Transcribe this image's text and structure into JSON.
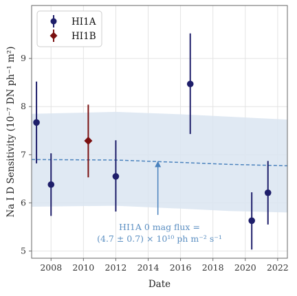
{
  "chart_data": {
    "type": "scatter",
    "xlabel": "Date",
    "ylabel": "Na I D Sensitivity (10⁻⁷ DN ph⁻¹ m²)",
    "xlim": [
      2006.8,
      2022.6
    ],
    "ylim": [
      4.85,
      10.1
    ],
    "xticks": [
      2008,
      2010,
      2012,
      2014,
      2016,
      2018,
      2020,
      2022
    ],
    "yticks": [
      5,
      6,
      7,
      8,
      9
    ],
    "grid": true,
    "legend_position": "top-left",
    "series": [
      {
        "name": "HI1A",
        "marker": "circle",
        "color": "#1e1e6a",
        "points": [
          {
            "x": 2007.1,
            "y": 7.67,
            "ylow": 6.82,
            "yhigh": 8.52
          },
          {
            "x": 2008.0,
            "y": 6.38,
            "ylow": 5.73,
            "yhigh": 7.03
          },
          {
            "x": 2012.0,
            "y": 6.55,
            "ylow": 5.82,
            "yhigh": 7.3
          },
          {
            "x": 2016.6,
            "y": 8.47,
            "ylow": 7.43,
            "yhigh": 9.52
          },
          {
            "x": 2020.4,
            "y": 5.63,
            "ylow": 5.03,
            "yhigh": 6.22
          },
          {
            "x": 2021.4,
            "y": 6.21,
            "ylow": 5.55,
            "yhigh": 6.87
          }
        ]
      },
      {
        "name": "HI1B",
        "marker": "diamond",
        "color": "#7a1010",
        "points": [
          {
            "x": 2010.3,
            "y": 7.29,
            "ylow": 6.53,
            "yhigh": 8.04
          }
        ]
      }
    ],
    "trend": {
      "style": "dashed",
      "color": "#4a82bd",
      "band_color": "#dbe5f1",
      "points": [
        {
          "x": 2006.8,
          "y": 6.9,
          "ylow": 5.92,
          "yhigh": 7.85
        },
        {
          "x": 2012.0,
          "y": 6.89,
          "ylow": 5.94,
          "yhigh": 7.89
        },
        {
          "x": 2016.0,
          "y": 6.84,
          "ylow": 5.88,
          "yhigh": 7.84
        },
        {
          "x": 2019.0,
          "y": 6.8,
          "ylow": 5.83,
          "yhigh": 7.79
        },
        {
          "x": 2022.6,
          "y": 6.77,
          "ylow": 5.8,
          "yhigh": 7.73
        }
      ]
    },
    "annotation": {
      "line1": "HI1A 0 mag flux =",
      "line2": "(4.7 ± 0.7) × 10¹⁰ ph m⁻² s⁻¹",
      "arrow_from": {
        "x": 2014.6,
        "y": 5.75
      },
      "arrow_to": {
        "x": 2014.6,
        "y": 6.87
      }
    }
  }
}
